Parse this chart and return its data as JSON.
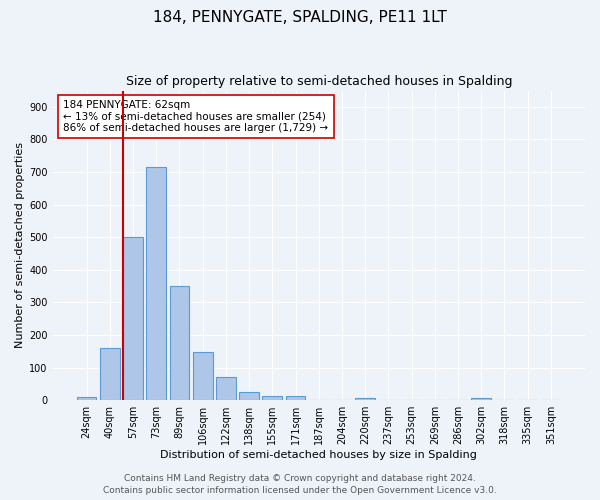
{
  "title": "184, PENNYGATE, SPALDING, PE11 1LT",
  "subtitle": "Size of property relative to semi-detached houses in Spalding",
  "xlabel": "Distribution of semi-detached houses by size in Spalding",
  "ylabel": "Number of semi-detached properties",
  "categories": [
    "24sqm",
    "40sqm",
    "57sqm",
    "73sqm",
    "89sqm",
    "106sqm",
    "122sqm",
    "138sqm",
    "155sqm",
    "171sqm",
    "187sqm",
    "204sqm",
    "220sqm",
    "237sqm",
    "253sqm",
    "269sqm",
    "286sqm",
    "302sqm",
    "318sqm",
    "335sqm",
    "351sqm"
  ],
  "values": [
    10,
    160,
    500,
    715,
    350,
    148,
    70,
    25,
    13,
    12,
    0,
    0,
    8,
    0,
    0,
    0,
    0,
    8,
    0,
    0,
    0
  ],
  "bar_color": "#aec6e8",
  "bar_edge_color": "#5b9bd5",
  "vline_x_index": 2,
  "vline_color": "#cc0000",
  "annotation_line1": "184 PENNYGATE: 62sqm",
  "annotation_line2": "← 13% of semi-detached houses are smaller (254)",
  "annotation_line3": "86% of semi-detached houses are larger (1,729) →",
  "annotation_box_color": "#ffffff",
  "annotation_box_edge": "#cc0000",
  "ylim": [
    0,
    950
  ],
  "yticks": [
    0,
    100,
    200,
    300,
    400,
    500,
    600,
    700,
    800,
    900
  ],
  "footer1": "Contains HM Land Registry data © Crown copyright and database right 2024.",
  "footer2": "Contains public sector information licensed under the Open Government Licence v3.0.",
  "bg_color": "#eef3f9",
  "plot_bg_color": "#eef3f9",
  "grid_color": "#ffffff",
  "title_fontsize": 11,
  "subtitle_fontsize": 9,
  "axis_label_fontsize": 8,
  "tick_fontsize": 7,
  "annotation_fontsize": 7.5,
  "footer_fontsize": 6.5
}
